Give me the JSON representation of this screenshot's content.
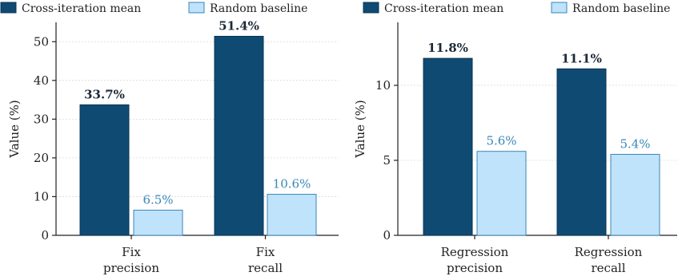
{
  "chart_data": [
    {
      "type": "bar",
      "categories": [
        [
          "Fix",
          "precision"
        ],
        [
          "Fix",
          "recall"
        ]
      ],
      "ylabel": "Value (%)",
      "ylim": [
        0,
        55
      ],
      "yticks": [
        0,
        10,
        20,
        30,
        40,
        50
      ],
      "series": [
        {
          "name": "Cross-iteration mean",
          "values": [
            33.7,
            51.4
          ],
          "labels": [
            "33.7%",
            "51.4%"
          ],
          "color": "#0f4a73"
        },
        {
          "name": "Random baseline",
          "values": [
            6.5,
            10.6
          ],
          "labels": [
            "6.5%",
            "10.6%"
          ],
          "color": "#bfe3fa"
        }
      ],
      "legend_position": "top",
      "grid": true
    },
    {
      "type": "bar",
      "categories": [
        [
          "Regression",
          "precision"
        ],
        [
          "Regression",
          "recall"
        ]
      ],
      "ylabel": "Value (%)",
      "ylim": [
        0,
        14.2
      ],
      "yticks": [
        0,
        5,
        10
      ],
      "series": [
        {
          "name": "Cross-iteration mean",
          "values": [
            11.8,
            11.1
          ],
          "labels": [
            "11.8%",
            "11.1%"
          ],
          "color": "#0f4a73"
        },
        {
          "name": "Random baseline",
          "values": [
            5.6,
            5.4
          ],
          "labels": [
            "5.6%",
            "5.4%"
          ],
          "color": "#bfe3fa"
        }
      ],
      "legend_position": "top",
      "grid": true
    }
  ]
}
